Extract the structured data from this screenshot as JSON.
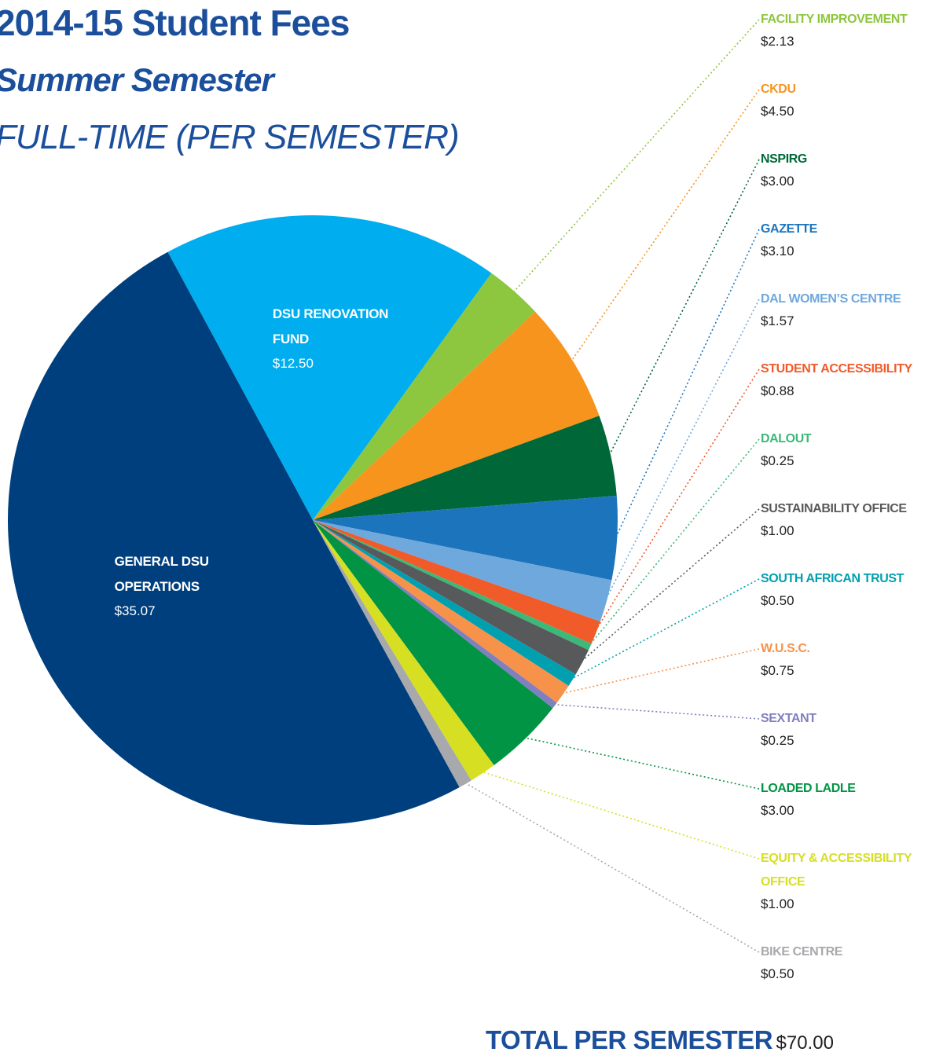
{
  "chart_data": {
    "type": "pie",
    "title": "2014-15 Student Fees",
    "subtitle": "Summer Semester",
    "period": "FULL-TIME (PER SEMESTER)",
    "categories": [
      "DSU RENOVATION FUND",
      "FACILITY IMPROVEMENT",
      "CKDU",
      "NSPIRG",
      "GAZETTE",
      "DAL WOMEN’S CENTRE",
      "STUDENT ACCESSIBILITY",
      "DALOUT",
      "SUSTAINABILITY OFFICE",
      "SOUTH AFRICAN TRUST",
      "W.U.S.C.",
      "SEXTANT",
      "LOADED LADLE",
      "EQUITY & ACCESSIBILITY OFFICE",
      "BIKE CENTRE",
      "GENERAL DSU OPERATIONS"
    ],
    "values": [
      12.5,
      2.13,
      4.5,
      3.0,
      3.1,
      1.57,
      0.88,
      0.25,
      1.0,
      0.5,
      0.75,
      0.25,
      3.0,
      1.0,
      0.5,
      35.07
    ],
    "value_labels": [
      "$12.50",
      "$2.13",
      "$4.50",
      "$3.00",
      "$3.10",
      "$1.57",
      "$0.88",
      "$0.25",
      "$1.00",
      "$0.50",
      "$0.75",
      "$0.25",
      "$3.00",
      "$1.00",
      "$0.50",
      "$35.07"
    ],
    "colors": [
      "#00aeef",
      "#8dc63f",
      "#f7941d",
      "#006838",
      "#1c75bc",
      "#6fa8dc",
      "#f15a29",
      "#3cb878",
      "#58595b",
      "#00a0b0",
      "#f7924a",
      "#8080c0",
      "#009444",
      "#d7df23",
      "#a7a9ac",
      "#003f7d"
    ],
    "total": {
      "label": "TOTAL PER SEMESTER",
      "value": 70,
      "value_label": "$70.00"
    }
  }
}
